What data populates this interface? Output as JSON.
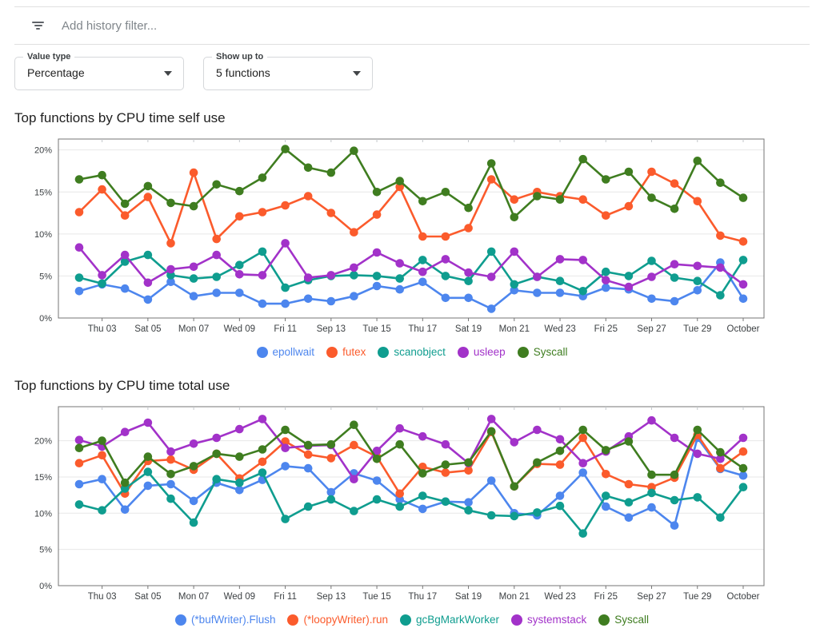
{
  "filter_bar": {
    "placeholder": "Add history filter..."
  },
  "controls": [
    {
      "label": "Value type",
      "value": "Percentage"
    },
    {
      "label": "Show up to",
      "value": "5 functions"
    }
  ],
  "palette": {
    "blue": "#4d86ee",
    "deep_orange": "#fb5b2c",
    "teal": "#0f9d8f",
    "purple": "#a232c9",
    "green": "#3f7d20"
  },
  "chart_data": [
    {
      "type": "line",
      "name": "cpu-time-self-use",
      "title": "Top functions by CPU time self use",
      "grid": true,
      "legend_position": "bottom",
      "y_ticks": [
        0,
        5,
        10,
        15,
        20
      ],
      "ymax": 21.3,
      "x_tick_labels": [
        "Thu 03",
        "Sat 05",
        "Mon 07",
        "Wed 09",
        "Fri 11",
        "Sep 13",
        "Tue 15",
        "Thu 17",
        "Sat 19",
        "Mon 21",
        "Wed 23",
        "Fri 25",
        "Sep 27",
        "Tue 29",
        "October"
      ],
      "x_tick_indices": [
        1,
        3,
        5,
        7,
        9,
        11,
        13,
        15,
        17,
        19,
        21,
        23,
        25,
        27,
        29
      ],
      "series": [
        {
          "name": "epollwait",
          "color": "blue",
          "values": [
            3.2,
            4.0,
            3.5,
            2.2,
            4.3,
            2.6,
            3.0,
            3.0,
            1.7,
            1.7,
            2.3,
            2.0,
            2.6,
            3.8,
            3.4,
            4.3,
            2.4,
            2.4,
            1.1,
            3.3,
            3.0,
            3.0,
            2.6,
            3.6,
            3.4,
            2.3,
            2.0,
            3.3,
            6.6,
            2.3
          ]
        },
        {
          "name": "futex",
          "color": "deep_orange",
          "values": [
            12.6,
            15.3,
            12.2,
            14.4,
            8.9,
            17.3,
            9.4,
            12.1,
            12.6,
            13.4,
            14.5,
            12.5,
            10.2,
            12.3,
            15.6,
            9.7,
            9.7,
            10.7,
            16.5,
            14.1,
            15.0,
            14.5,
            14.1,
            12.2,
            13.3,
            17.4,
            16.0,
            13.9,
            9.8,
            9.1
          ]
        },
        {
          "name": "scanobject",
          "color": "teal",
          "values": [
            4.8,
            4.1,
            6.7,
            7.5,
            5.1,
            4.7,
            4.9,
            6.3,
            7.9,
            3.6,
            4.5,
            5.0,
            5.1,
            5.0,
            4.7,
            6.9,
            5.0,
            4.4,
            7.9,
            4.0,
            4.9,
            4.4,
            3.2,
            5.5,
            5.0,
            6.8,
            4.8,
            4.4,
            2.7,
            6.9
          ]
        },
        {
          "name": "usleep",
          "color": "purple",
          "values": [
            8.4,
            5.1,
            7.5,
            4.2,
            5.8,
            6.1,
            7.5,
            5.2,
            5.1,
            8.9,
            4.8,
            5.1,
            6.0,
            7.8,
            6.5,
            5.5,
            7.0,
            5.4,
            4.9,
            7.9,
            4.9,
            7.0,
            6.9,
            4.5,
            3.7,
            4.9,
            6.4,
            6.2,
            6.0,
            4.0
          ]
        },
        {
          "name": "Syscall",
          "color": "green",
          "values": [
            16.5,
            17.0,
            13.6,
            15.7,
            13.7,
            13.3,
            15.9,
            15.1,
            16.7,
            20.1,
            17.9,
            17.3,
            19.9,
            15.0,
            16.3,
            13.9,
            15.0,
            13.1,
            18.4,
            12.0,
            14.5,
            14.1,
            18.9,
            16.5,
            17.4,
            14.3,
            13.0,
            18.7,
            16.1,
            14.3
          ]
        }
      ]
    },
    {
      "type": "line",
      "name": "cpu-time-total-use",
      "title": "Top functions by CPU time total use",
      "grid": true,
      "legend_position": "bottom",
      "y_ticks": [
        0,
        5,
        10,
        15,
        20
      ],
      "ymax": 24.7,
      "x_tick_labels": [
        "Thu 03",
        "Sat 05",
        "Mon 07",
        "Wed 09",
        "Fri 11",
        "Sep 13",
        "Tue 15",
        "Thu 17",
        "Sat 19",
        "Mon 21",
        "Wed 23",
        "Fri 25",
        "Sep 27",
        "Tue 29",
        "October"
      ],
      "x_tick_indices": [
        1,
        3,
        5,
        7,
        9,
        11,
        13,
        15,
        17,
        19,
        21,
        23,
        25,
        27,
        29
      ],
      "series": [
        {
          "name": "(*bufWriter).Flush",
          "color": "blue",
          "values": [
            14.0,
            14.7,
            10.5,
            13.8,
            14.0,
            11.7,
            14.2,
            13.2,
            14.6,
            16.5,
            16.2,
            12.9,
            15.5,
            14.5,
            11.9,
            10.6,
            11.6,
            11.5,
            14.5,
            10.0,
            9.7,
            12.4,
            15.6,
            10.9,
            9.4,
            10.8,
            8.3,
            20.4,
            16.1,
            15.2
          ]
        },
        {
          "name": "(*loopyWriter).run",
          "color": "deep_orange",
          "values": [
            16.9,
            18.0,
            12.7,
            17.2,
            17.4,
            16.0,
            18.2,
            14.8,
            17.1,
            19.9,
            18.1,
            17.6,
            19.4,
            17.8,
            12.7,
            16.4,
            15.6,
            15.9,
            21.2,
            13.7,
            16.8,
            16.7,
            20.4,
            15.4,
            14.0,
            13.6,
            14.9,
            20.8,
            16.2,
            18.5
          ]
        },
        {
          "name": "gcBgMarkWorker",
          "color": "teal",
          "values": [
            11.2,
            10.4,
            13.4,
            15.7,
            12.0,
            8.7,
            14.7,
            14.2,
            15.6,
            9.2,
            10.9,
            11.9,
            10.3,
            11.9,
            10.9,
            12.4,
            11.6,
            10.4,
            9.7,
            9.6,
            10.1,
            11.0,
            7.2,
            12.4,
            11.5,
            12.8,
            11.8,
            12.2,
            9.4,
            13.6
          ]
        },
        {
          "name": "systemstack",
          "color": "purple",
          "values": [
            20.1,
            19.2,
            21.2,
            22.5,
            18.5,
            19.6,
            20.4,
            21.6,
            23.0,
            19.0,
            19.3,
            19.4,
            14.7,
            18.6,
            21.7,
            20.6,
            19.5,
            16.9,
            23.0,
            19.8,
            21.5,
            20.2,
            16.9,
            18.5,
            20.6,
            22.8,
            20.4,
            18.2,
            17.5,
            20.4
          ]
        },
        {
          "name": "Syscall",
          "color": "green",
          "values": [
            19.0,
            20.0,
            14.2,
            17.8,
            15.4,
            16.5,
            18.2,
            17.8,
            18.8,
            21.5,
            19.4,
            19.5,
            22.2,
            17.5,
            19.5,
            15.5,
            16.7,
            17.0,
            21.3,
            13.7,
            17.0,
            18.6,
            21.5,
            18.7,
            19.9,
            15.3,
            15.3,
            21.5,
            18.4,
            16.2
          ]
        }
      ]
    }
  ]
}
